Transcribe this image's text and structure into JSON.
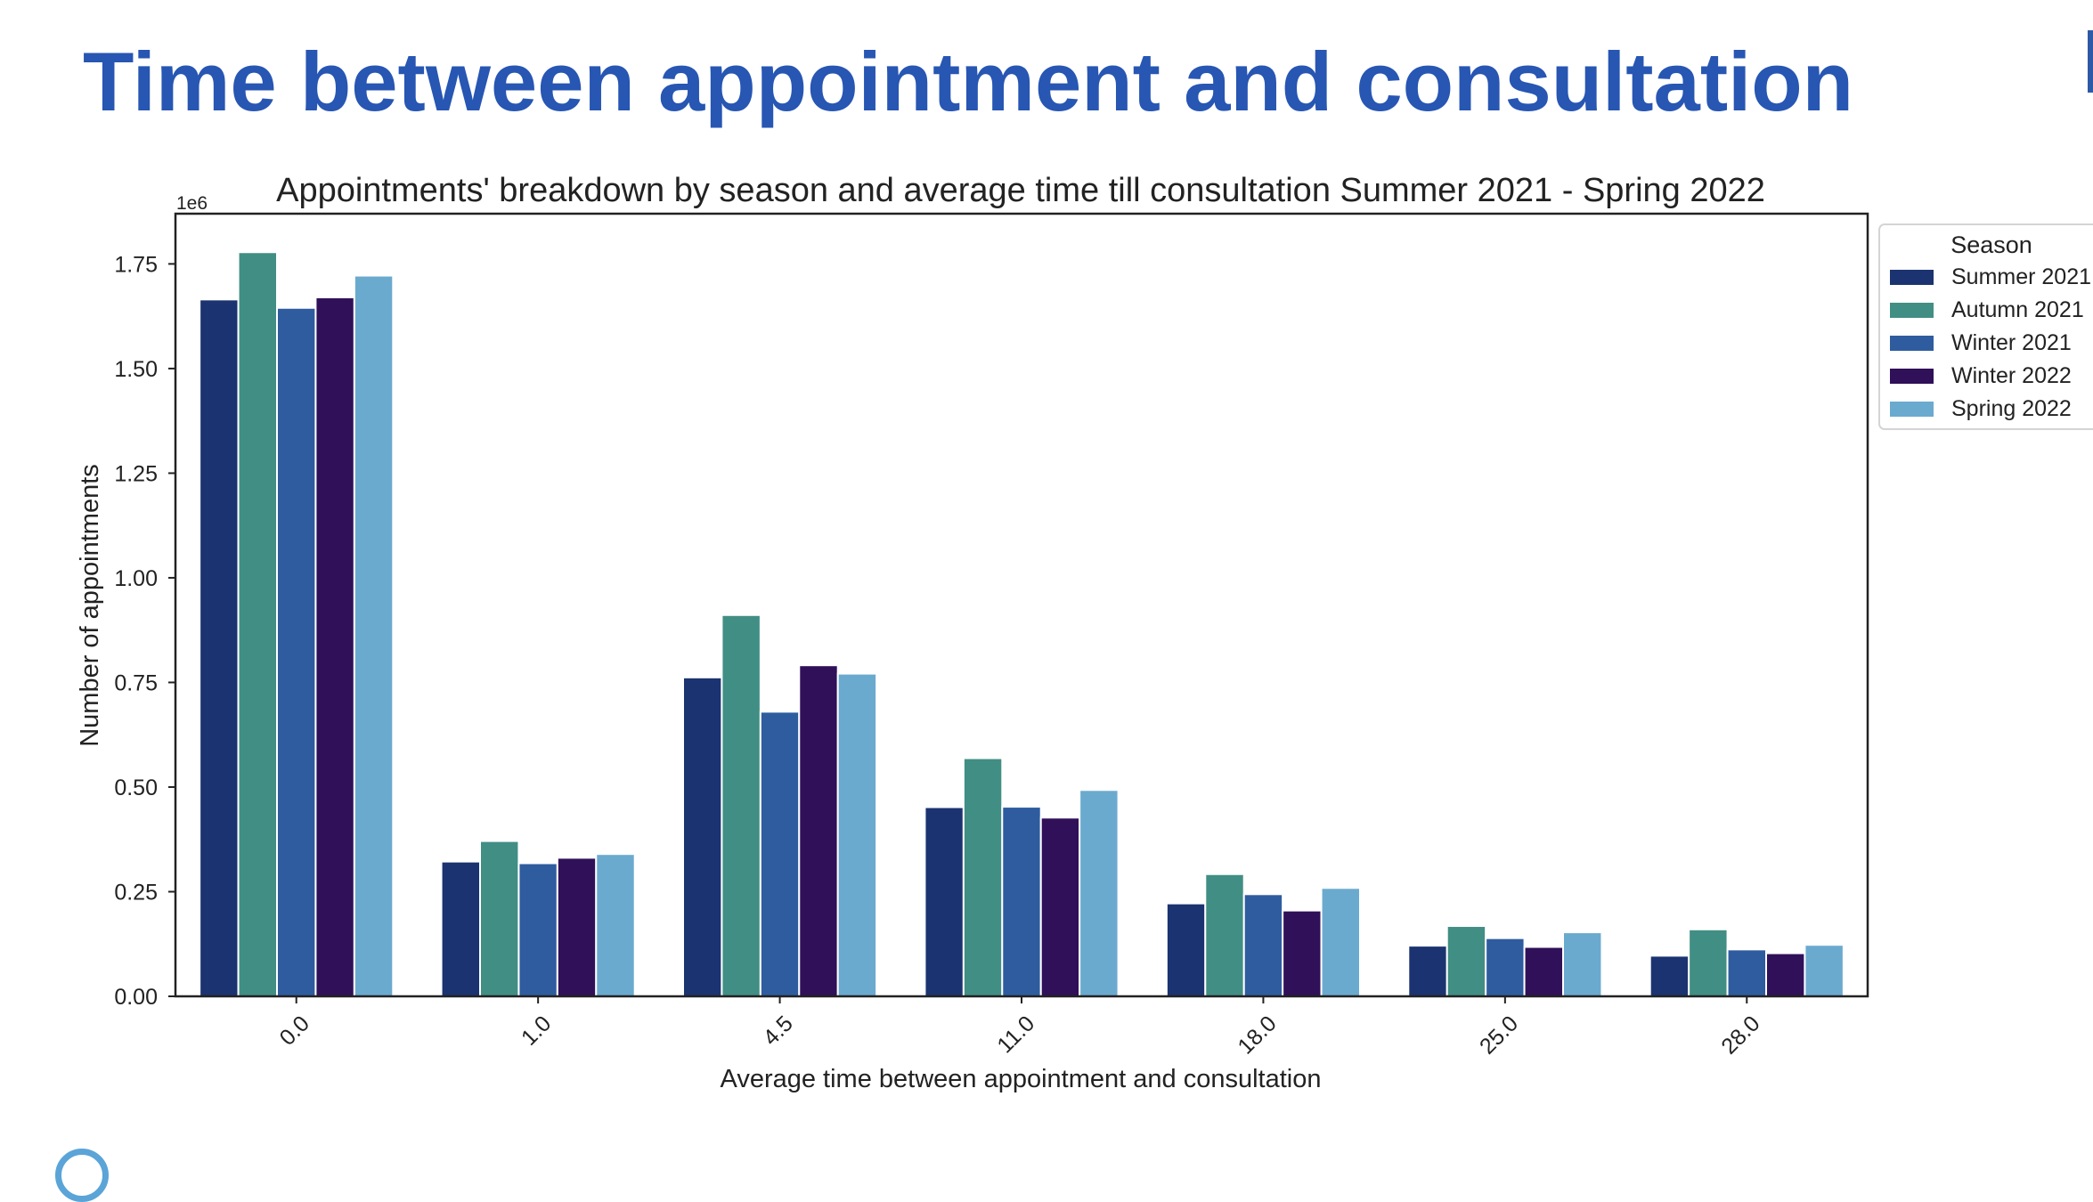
{
  "slide": {
    "title": "Time between appointment and consultation"
  },
  "colors": {
    "title": "#2756b3",
    "axis": "#222222"
  },
  "chart_data": {
    "type": "bar",
    "title": "Appointments' breakdown by season and average time till consultation Summer 2021 - Spring 2022",
    "xlabel": "Average time between appointment and consultation",
    "ylabel": "Number of appointments",
    "y_scale_label": "1e6",
    "ylim": [
      0,
      1.87
    ],
    "y_ticks": [
      0.0,
      0.25,
      0.5,
      0.75,
      1.0,
      1.25,
      1.5,
      1.75
    ],
    "y_tick_labels": [
      "0.00",
      "0.25",
      "0.50",
      "0.75",
      "1.00",
      "1.25",
      "1.50",
      "1.75"
    ],
    "categories": [
      "0.0",
      "1.0",
      "4.5",
      "11.0",
      "18.0",
      "25.0",
      "28.0"
    ],
    "grid": false,
    "legend": {
      "title": "Season",
      "placement": "outside-top-right"
    },
    "series": [
      {
        "name": "Summer 2021",
        "color": "#1b3370",
        "values": [
          1.665,
          0.322,
          0.762,
          0.452,
          0.222,
          0.121,
          0.097
        ]
      },
      {
        "name": "Autumn 2021",
        "color": "#418e84",
        "values": [
          1.778,
          0.371,
          0.911,
          0.569,
          0.292,
          0.168,
          0.16
        ]
      },
      {
        "name": "Winter 2021",
        "color": "#2e5c9f",
        "values": [
          1.645,
          0.318,
          0.68,
          0.453,
          0.244,
          0.139,
          0.112
        ]
      },
      {
        "name": "Winter 2022",
        "color": "#301059",
        "values": [
          1.67,
          0.331,
          0.791,
          0.427,
          0.205,
          0.118,
          0.103
        ]
      },
      {
        "name": "Spring 2022",
        "color": "#6baacf",
        "values": [
          1.722,
          0.34,
          0.771,
          0.493,
          0.259,
          0.153,
          0.123
        ]
      }
    ]
  }
}
